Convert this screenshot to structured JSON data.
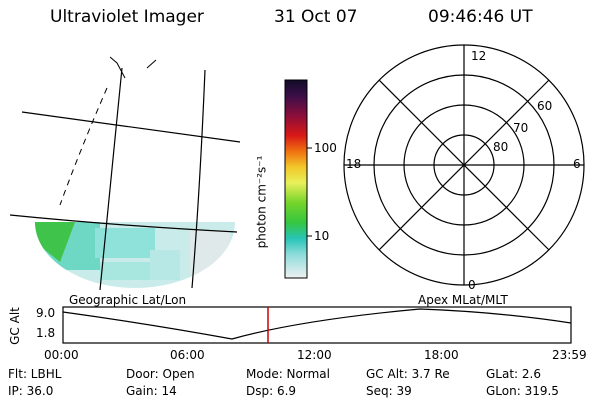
{
  "header": {
    "title": "Ultraviolet Imager",
    "date": "31 Oct 07",
    "time": "09:46:46 UT"
  },
  "map_left": {
    "caption": "Geographic Lat/Lon"
  },
  "map_right": {
    "caption": "Apex  MLat/MLT",
    "mlt_labels": [
      "12",
      "18",
      "6",
      "0"
    ],
    "lat_labels": [
      "60",
      "70",
      "80"
    ]
  },
  "colorbar": {
    "unit_label": "photon cm⁻²s⁻¹",
    "ticks": [
      "100",
      "10"
    ],
    "colors": [
      "#1a1030",
      "#5a0a4a",
      "#a0102a",
      "#d61a1a",
      "#f07a10",
      "#f0d020",
      "#e6f060",
      "#7ad830",
      "#3ec83c",
      "#2ec6b0",
      "#88dcd8",
      "#c8eaea",
      "#e8f0f0"
    ]
  },
  "altitude_plot": {
    "ylabel": "GC Alt",
    "yticks": [
      "9.0",
      "1.8"
    ],
    "xticks": [
      "00:00",
      "06:00",
      "12:00",
      "18:00",
      "23:59"
    ],
    "marker_color": "#cc0000"
  },
  "footer": {
    "flt": "Flt: LBHL",
    "ip": "IP: 36.0",
    "door": "Door: Open",
    "gain": "Gain: 14",
    "mode": "Mode: Normal",
    "dsp": "Dsp:    6.9",
    "gc_alt": "GC Alt: 3.7 Re",
    "seq": "Seq: 39",
    "glat": "GLat:    2.6",
    "glon": "GLon: 319.5"
  }
}
